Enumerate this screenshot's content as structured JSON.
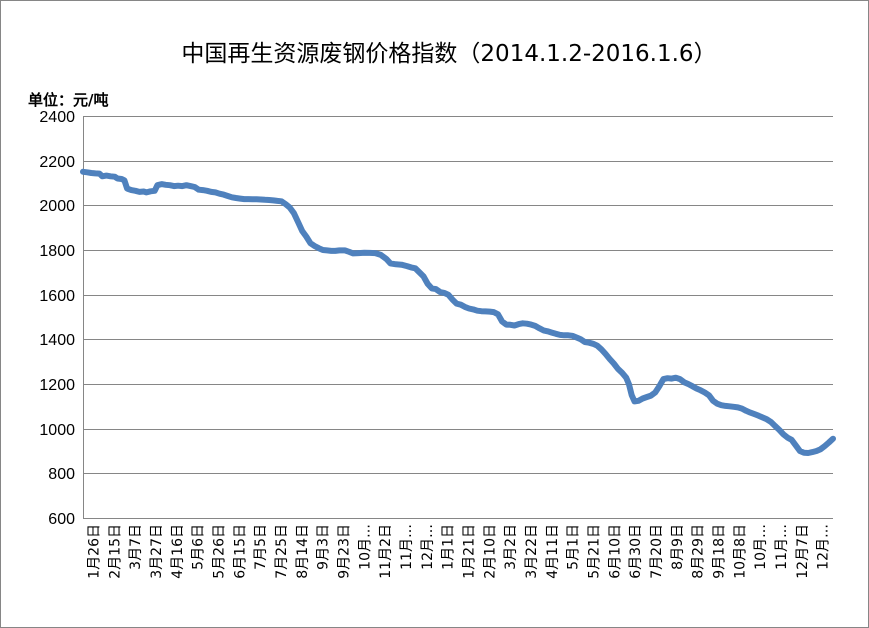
{
  "chart_data": {
    "type": "line",
    "title": "中国再生资源废钢价格指数（2014.1.2-2016.1.6）",
    "unit_label": "单位：元/吨",
    "xlabel": "",
    "ylabel": "",
    "ylim": [
      600,
      2400
    ],
    "yticks": [
      600,
      800,
      1000,
      1200,
      1400,
      1600,
      1800,
      2000,
      2200,
      2400
    ],
    "grid": true,
    "legend": "none",
    "line_color": "#4f81bd",
    "x_tick_labels": [
      "1月26日",
      "2月15日",
      "3月7日",
      "3月27日",
      "4月16日",
      "5月6日",
      "5月26日",
      "6月15日",
      "7月5日",
      "7月25日",
      "8月14日",
      "9月3日",
      "9月23日",
      "10月…",
      "11月2日",
      "11月…",
      "12月…",
      "1月1日",
      "1月21日",
      "2月10日",
      "3月2日",
      "3月22日",
      "4月11日",
      "5月1日",
      "5月21日",
      "6月10日",
      "6月30日",
      "7月20日",
      "8月9日",
      "8月29日",
      "9月18日",
      "10月8日",
      "10月…",
      "11月…",
      "12月7日",
      "12月…"
    ],
    "series": [
      {
        "values": [
          [
            0,
            2150
          ],
          [
            3,
            2148
          ],
          [
            6,
            2145
          ],
          [
            9,
            2143
          ],
          [
            12,
            2142
          ],
          [
            14,
            2130
          ],
          [
            17,
            2133
          ],
          [
            20,
            2130
          ],
          [
            23,
            2128
          ],
          [
            25,
            2120
          ],
          [
            28,
            2118
          ],
          [
            30,
            2112
          ],
          [
            32,
            2075
          ],
          [
            35,
            2068
          ],
          [
            38,
            2065
          ],
          [
            41,
            2060
          ],
          [
            44,
            2062
          ],
          [
            46,
            2058
          ],
          [
            49,
            2063
          ],
          [
            52,
            2065
          ],
          [
            54,
            2090
          ],
          [
            57,
            2095
          ],
          [
            60,
            2092
          ],
          [
            63,
            2090
          ],
          [
            66,
            2086
          ],
          [
            69,
            2088
          ],
          [
            72,
            2086
          ],
          [
            75,
            2090
          ],
          [
            78,
            2086
          ],
          [
            81,
            2082
          ],
          [
            84,
            2070
          ],
          [
            87,
            2068
          ],
          [
            90,
            2065
          ],
          [
            93,
            2060
          ],
          [
            96,
            2058
          ],
          [
            99,
            2052
          ],
          [
            102,
            2048
          ],
          [
            105,
            2042
          ],
          [
            108,
            2036
          ],
          [
            111,
            2033
          ],
          [
            114,
            2030
          ],
          [
            117,
            2028
          ],
          [
            120,
            2028
          ],
          [
            123,
            2027
          ],
          [
            126,
            2027
          ],
          [
            129,
            2026
          ],
          [
            132,
            2025
          ],
          [
            135,
            2024
          ],
          [
            138,
            2022
          ],
          [
            141,
            2020
          ],
          [
            144,
            2018
          ],
          [
            147,
            2005
          ],
          [
            150,
            1990
          ],
          [
            153,
            1965
          ],
          [
            156,
            1925
          ],
          [
            159,
            1885
          ],
          [
            162,
            1860
          ],
          [
            165,
            1830
          ],
          [
            168,
            1818
          ],
          [
            171,
            1808
          ],
          [
            174,
            1800
          ],
          [
            177,
            1798
          ],
          [
            180,
            1796
          ],
          [
            183,
            1796
          ],
          [
            186,
            1798
          ],
          [
            190,
            1798
          ],
          [
            193,
            1792
          ],
          [
            196,
            1785
          ],
          [
            200,
            1786
          ],
          [
            204,
            1788
          ],
          [
            208,
            1787
          ],
          [
            212,
            1786
          ],
          [
            216,
            1778
          ],
          [
            220,
            1760
          ],
          [
            223,
            1740
          ],
          [
            227,
            1736
          ],
          [
            231,
            1734
          ],
          [
            235,
            1728
          ],
          [
            238,
            1722
          ],
          [
            241,
            1718
          ],
          [
            244,
            1700
          ],
          [
            247,
            1682
          ],
          [
            250,
            1648
          ],
          [
            253,
            1628
          ],
          [
            256,
            1625
          ],
          [
            259,
            1612
          ],
          [
            262,
            1608
          ],
          [
            265,
            1600
          ],
          [
            268,
            1578
          ],
          [
            271,
            1560
          ],
          [
            274,
            1555
          ],
          [
            277,
            1545
          ],
          [
            280,
            1538
          ],
          [
            283,
            1534
          ],
          [
            286,
            1528
          ],
          [
            289,
            1526
          ],
          [
            292,
            1525
          ],
          [
            295,
            1524
          ],
          [
            298,
            1522
          ],
          [
            301,
            1512
          ],
          [
            304,
            1480
          ],
          [
            307,
            1466
          ],
          [
            310,
            1465
          ],
          [
            313,
            1462
          ],
          [
            316,
            1468
          ],
          [
            319,
            1472
          ],
          [
            322,
            1470
          ],
          [
            325,
            1466
          ],
          [
            328,
            1460
          ],
          [
            331,
            1450
          ],
          [
            334,
            1440
          ],
          [
            337,
            1436
          ],
          [
            340,
            1430
          ],
          [
            343,
            1425
          ],
          [
            346,
            1420
          ],
          [
            349,
            1418
          ],
          [
            352,
            1418
          ],
          [
            355,
            1416
          ],
          [
            358,
            1408
          ],
          [
            361,
            1400
          ],
          [
            364,
            1388
          ],
          [
            367,
            1385
          ],
          [
            370,
            1380
          ],
          [
            373,
            1372
          ],
          [
            376,
            1355
          ],
          [
            379,
            1335
          ],
          [
            382,
            1312
          ],
          [
            385,
            1292
          ],
          [
            388,
            1268
          ],
          [
            391,
            1250
          ],
          [
            394,
            1228
          ],
          [
            396,
            1198
          ],
          [
            398,
            1150
          ],
          [
            400,
            1122
          ],
          [
            403,
            1125
          ],
          [
            406,
            1135
          ],
          [
            409,
            1142
          ],
          [
            412,
            1148
          ],
          [
            415,
            1162
          ],
          [
            418,
            1190
          ],
          [
            421,
            1222
          ],
          [
            424,
            1226
          ],
          [
            427,
            1224
          ],
          [
            430,
            1228
          ],
          [
            433,
            1222
          ],
          [
            436,
            1208
          ],
          [
            439,
            1200
          ],
          [
            442,
            1190
          ],
          [
            445,
            1180
          ],
          [
            448,
            1172
          ],
          [
            451,
            1162
          ],
          [
            454,
            1150
          ],
          [
            457,
            1125
          ],
          [
            460,
            1112
          ],
          [
            463,
            1105
          ],
          [
            466,
            1102
          ],
          [
            469,
            1100
          ],
          [
            472,
            1098
          ],
          [
            475,
            1095
          ],
          [
            478,
            1090
          ],
          [
            481,
            1080
          ],
          [
            484,
            1072
          ],
          [
            487,
            1065
          ],
          [
            490,
            1058
          ],
          [
            493,
            1050
          ],
          [
            496,
            1042
          ],
          [
            499,
            1030
          ],
          [
            502,
            1012
          ],
          [
            505,
            995
          ],
          [
            508,
            975
          ],
          [
            511,
            960
          ],
          [
            514,
            950
          ],
          [
            517,
            925
          ],
          [
            520,
            900
          ],
          [
            523,
            892
          ],
          [
            526,
            891
          ],
          [
            529,
            895
          ],
          [
            532,
            900
          ],
          [
            535,
            908
          ],
          [
            538,
            922
          ],
          [
            541,
            938
          ],
          [
            544,
            955
          ]
        ]
      }
    ]
  }
}
